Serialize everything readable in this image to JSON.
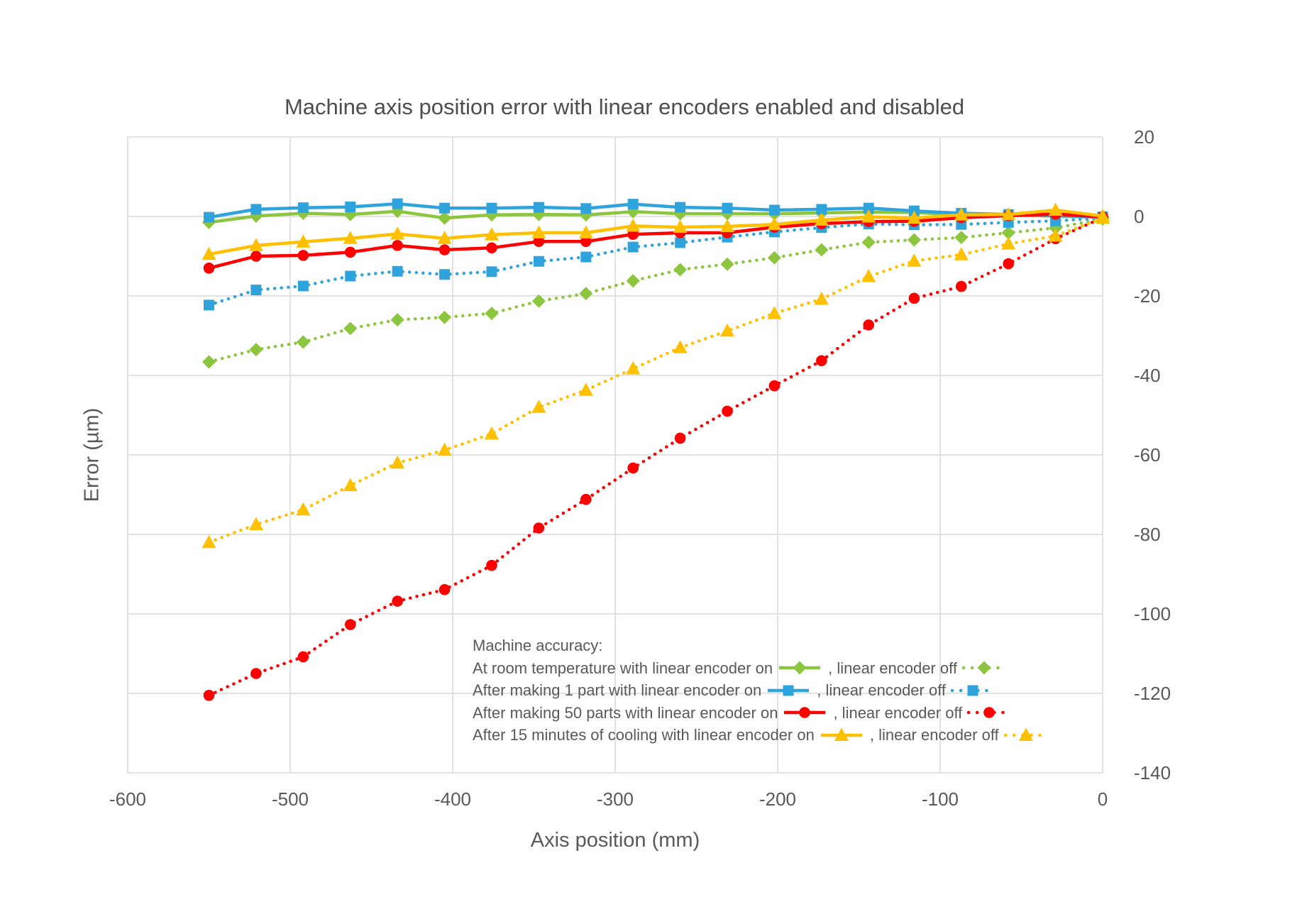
{
  "chart": {
    "title": "Machine axis position error with linear encoders enabled and disabled",
    "x_axis_title": "Axis position (mm)",
    "y_axis_title": "Error (µm)"
  },
  "chart_data": {
    "type": "line",
    "title": "Machine axis position error with linear encoders enabled and disabled",
    "xlabel": "Axis position (mm)",
    "ylabel": "Error (µm)",
    "xlim": [
      -600,
      0
    ],
    "ylim": [
      -140,
      20
    ],
    "x_ticks": [
      -600,
      -500,
      -400,
      -300,
      -200,
      -100,
      0
    ],
    "y_ticks": [
      20,
      0,
      -20,
      -40,
      -60,
      -80,
      -100,
      -120,
      -140
    ],
    "y_axis_side": "right",
    "grid": true,
    "legend_position": "inside-bottom-center",
    "colors": {
      "green": "#8cc63f",
      "blue": "#2fa3dc",
      "red": "#ff0000",
      "yellow": "#ffc000",
      "gridline": "#d9d9d9",
      "axis_text": "#595959",
      "title_text": "#4d4d4d"
    },
    "x": [
      -550,
      -521,
      -492,
      -463,
      -434,
      -405,
      -376,
      -347,
      -318,
      -289,
      -260,
      -231,
      -202,
      -173,
      -144,
      -116,
      -87,
      -58,
      -29,
      0
    ],
    "series": [
      {
        "id": "room-temp-encoder-on",
        "name": "At room temperature with linear encoder on",
        "color": "#8cc63f",
        "line_style": "solid",
        "marker": "diamond",
        "values": [
          -1.5,
          0.1,
          0.8,
          0.5,
          1.3,
          -0.4,
          0.4,
          0.5,
          0.4,
          1.2,
          0.7,
          0.7,
          0.7,
          0.9,
          1.1,
          1.0,
          0.4,
          0.3,
          0.1,
          -0.2
        ]
      },
      {
        "id": "room-temp-encoder-off",
        "name": "At room temperature with linear encoder off",
        "color": "#8cc63f",
        "line_style": "dotted",
        "marker": "diamond",
        "values": [
          -36.6,
          -33.5,
          -31.6,
          -28.2,
          -26.0,
          -25.4,
          -24.4,
          -21.3,
          -19.4,
          -16.2,
          -13.4,
          -12.0,
          -10.4,
          -8.4,
          -6.5,
          -5.9,
          -5.3,
          -4.1,
          -2.9,
          -0.6
        ]
      },
      {
        "id": "one-part-encoder-on",
        "name": "After making 1 part with linear encoder on",
        "color": "#2fa3dc",
        "line_style": "solid",
        "marker": "square",
        "values": [
          -0.2,
          1.8,
          2.2,
          2.4,
          3.2,
          2.1,
          2.1,
          2.3,
          2.0,
          3.1,
          2.3,
          2.1,
          1.6,
          1.8,
          2.1,
          1.4,
          0.8,
          0.5,
          0.2,
          -0.1
        ]
      },
      {
        "id": "one-part-encoder-off",
        "name": "After making 1 part with linear encoder off",
        "color": "#2fa3dc",
        "line_style": "dotted",
        "marker": "square",
        "values": [
          -22.3,
          -18.5,
          -17.5,
          -15.0,
          -13.8,
          -14.6,
          -13.9,
          -11.3,
          -10.2,
          -7.7,
          -6.6,
          -5.2,
          -3.9,
          -2.8,
          -1.9,
          -2.1,
          -2.0,
          -1.5,
          -1.1,
          -0.4
        ]
      },
      {
        "id": "fifty-parts-encoder-on",
        "name": "After making 50 parts with linear encoder on",
        "color": "#ff0000",
        "line_style": "solid",
        "marker": "circle",
        "values": [
          -13.0,
          -10.0,
          -9.8,
          -9.0,
          -7.3,
          -8.4,
          -7.9,
          -6.3,
          -6.3,
          -4.5,
          -4.1,
          -4.1,
          -2.7,
          -1.8,
          -1.3,
          -1.2,
          -0.3,
          0.2,
          0.6,
          -0.1
        ]
      },
      {
        "id": "fifty-parts-encoder-off",
        "name": "After making 50 parts with linear encoder off",
        "color": "#ff0000",
        "line_style": "dotted",
        "marker": "circle",
        "values": [
          -120.5,
          -115.0,
          -110.8,
          -102.7,
          -96.8,
          -93.9,
          -87.8,
          -78.4,
          -71.2,
          -63.3,
          -55.8,
          -49.0,
          -42.6,
          -36.3,
          -27.3,
          -20.6,
          -17.6,
          -11.9,
          -5.6,
          -0.3
        ]
      },
      {
        "id": "cooling-encoder-on",
        "name": "After 15 minutes of cooling with linear encoder on",
        "color": "#ffc000",
        "line_style": "solid",
        "marker": "triangle",
        "values": [
          -9.5,
          -7.3,
          -6.4,
          -5.5,
          -4.4,
          -5.5,
          -4.6,
          -4.1,
          -4.1,
          -2.4,
          -2.7,
          -2.5,
          -2.0,
          -0.9,
          -0.1,
          -0.4,
          0.4,
          0.5,
          1.6,
          0.1
        ]
      },
      {
        "id": "cooling-encoder-off",
        "name": "After 15 minutes of cooling with linear encoder off",
        "color": "#ffc000",
        "line_style": "dotted",
        "marker": "triangle",
        "values": [
          -82.0,
          -77.5,
          -73.8,
          -67.7,
          -62.0,
          -58.8,
          -54.7,
          -48.0,
          -43.7,
          -38.3,
          -33.0,
          -28.8,
          -24.4,
          -20.8,
          -15.1,
          -11.2,
          -9.6,
          -6.9,
          -4.9,
          -0.4
        ]
      }
    ]
  },
  "legend": {
    "intro": "Machine accuracy:",
    "off_label": ", linear encoder off",
    "rows": [
      {
        "label_on": "At room temperature with linear encoder on",
        "on_series": "room-temp-encoder-on",
        "off_series": "room-temp-encoder-off"
      },
      {
        "label_on": "After making 1 part with linear encoder on",
        "on_series": "one-part-encoder-on",
        "off_series": "one-part-encoder-off"
      },
      {
        "label_on": "After making 50 parts with linear encoder on",
        "on_series": "fifty-parts-encoder-on",
        "off_series": "fifty-parts-encoder-off"
      },
      {
        "label_on": "After 15 minutes of cooling with linear encoder on",
        "on_series": "cooling-encoder-on",
        "off_series": "cooling-encoder-off"
      }
    ]
  }
}
